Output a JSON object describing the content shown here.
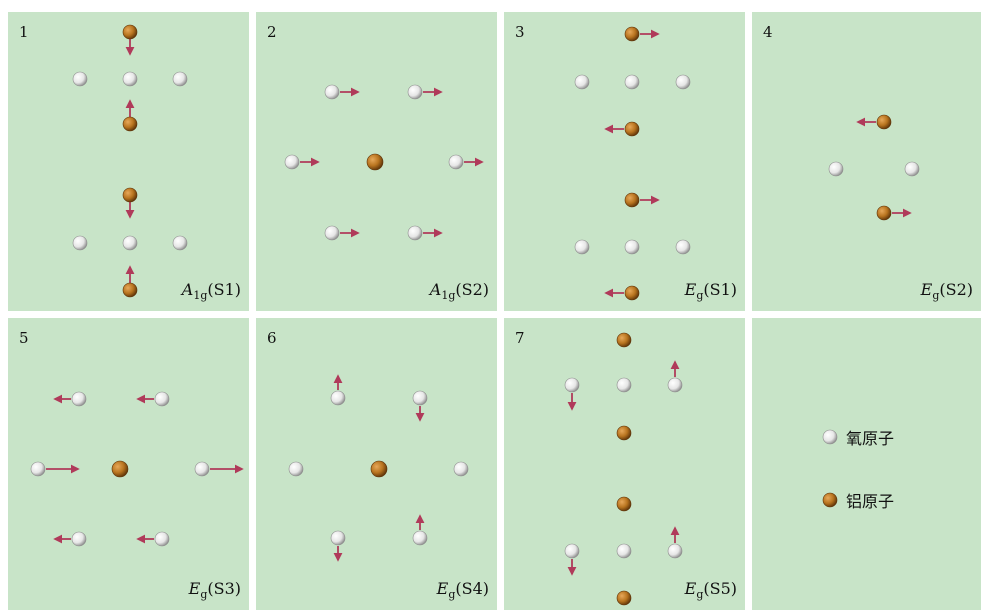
{
  "panels": [
    {
      "number": "1",
      "mode": {
        "symbol": "A",
        "sub": "1g",
        "suffix": "(S1)"
      }
    },
    {
      "number": "2",
      "mode": {
        "symbol": "A",
        "sub": "1g",
        "suffix": "(S2)"
      }
    },
    {
      "number": "3",
      "mode": {
        "symbol": "E",
        "sub": "g",
        "suffix": "(S1)"
      }
    },
    {
      "number": "4",
      "mode": {
        "symbol": "E",
        "sub": "g",
        "suffix": "(S2)"
      }
    },
    {
      "number": "5",
      "mode": {
        "symbol": "E",
        "sub": "g",
        "suffix": "(S3)"
      }
    },
    {
      "number": "6",
      "mode": {
        "symbol": "E",
        "sub": "g",
        "suffix": "(S4)"
      }
    },
    {
      "number": "7",
      "mode": {
        "symbol": "E",
        "sub": "g",
        "suffix": "(S5)"
      }
    }
  ],
  "legend": {
    "oxygen": "氧原子",
    "aluminum": "铝原子"
  },
  "colors": {
    "panel_bg": "#c8e4c8",
    "oxygen": "#f2f2f2",
    "aluminum": "#b8741f",
    "arrow": "#b03a5a"
  }
}
